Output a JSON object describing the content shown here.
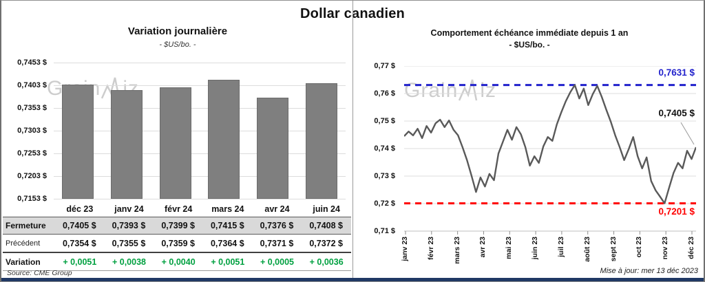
{
  "page": {
    "title": "Dollar canadien",
    "source": "Source: CME Group",
    "updated": "Mise à jour: mer 13 déc 2023",
    "watermark": {
      "part1": "Grain",
      "part2": "iz"
    }
  },
  "colors": {
    "bar": "#7F7F7F",
    "price_line": "#595959",
    "max_line": "#2222CC",
    "min_line": "#FF0000",
    "positive_text": "#00A040",
    "closing_band_bg": "#D9D9D9",
    "gridline": "#DCDCDC",
    "bottom_bar": "#1F3864"
  },
  "table": {
    "columns": [
      "déc 23",
      "janv 24",
      "févr 24",
      "mars 24",
      "avr 24",
      "juin 24"
    ],
    "rows": [
      {
        "label": "Fermeture",
        "style": "closing",
        "values": [
          "0,7405 $",
          "0,7393 $",
          "0,7399 $",
          "0,7415 $",
          "0,7376 $",
          "0,7408 $"
        ]
      },
      {
        "label": "Précédent",
        "style": "previous",
        "values": [
          "0,7354 $",
          "0,7355 $",
          "0,7359 $",
          "0,7364 $",
          "0,7371 $",
          "0,7372 $"
        ]
      },
      {
        "label": "Variation",
        "style": "variation",
        "values": [
          "+ 0,0051",
          "+ 0,0038",
          "+ 0,0040",
          "+ 0,0051",
          "+ 0,0005",
          "+ 0,0036"
        ]
      }
    ]
  },
  "chart_data": [
    {
      "type": "bar",
      "title": "Variation  journalière",
      "subtitle": "- $US/bo. -",
      "categories": [
        "déc 23",
        "janv 24",
        "févr 24",
        "mars 24",
        "avr 24",
        "juin 24"
      ],
      "values": [
        0.7405,
        0.7393,
        0.7399,
        0.7415,
        0.7376,
        0.7408
      ],
      "ylim": [
        0.7153,
        0.7453
      ],
      "yticks": [
        "0,7453 $",
        "0,7403 $",
        "0,7353 $",
        "0,7303 $",
        "0,7253 $",
        "0,7203 $",
        "0,7153 $"
      ],
      "grid": true,
      "legend": "none"
    },
    {
      "type": "line",
      "title": "Comportement échéance immédiate depuis 1 an",
      "subtitle": "- $US/bo. -",
      "x_categories": [
        "janv 23",
        "févr 23",
        "mars 23",
        "avr 23",
        "mai 23",
        "juin 23",
        "juil 23",
        "août 23",
        "sept 23",
        "oct 23",
        "nov 23",
        "déc 23"
      ],
      "values": [
        0.7445,
        0.7462,
        0.7448,
        0.7472,
        0.7438,
        0.7482,
        0.7458,
        0.7492,
        0.7505,
        0.7478,
        0.7502,
        0.7468,
        0.7448,
        0.7405,
        0.7358,
        0.7302,
        0.7242,
        0.7295,
        0.7262,
        0.7308,
        0.7285,
        0.7382,
        0.7425,
        0.7468,
        0.7432,
        0.7478,
        0.7452,
        0.7405,
        0.7338,
        0.7372,
        0.7348,
        0.7408,
        0.7442,
        0.7428,
        0.7488,
        0.7532,
        0.7572,
        0.7605,
        0.7631,
        0.7582,
        0.7618,
        0.7558,
        0.7598,
        0.7628,
        0.7588,
        0.7542,
        0.7498,
        0.7448,
        0.7405,
        0.7358,
        0.7398,
        0.7442,
        0.7372,
        0.7328,
        0.7368,
        0.7282,
        0.7248,
        0.7225,
        0.7201,
        0.7258,
        0.7312,
        0.7348,
        0.7328,
        0.7392,
        0.7362,
        0.7405
      ],
      "ylim": [
        0.71,
        0.77
      ],
      "yticks": [
        "0,77 $",
        "0,76 $",
        "0,75 $",
        "0,74 $",
        "0,73 $",
        "0,72 $",
        "0,71 $"
      ],
      "ytick_values": [
        0.77,
        0.76,
        0.75,
        0.74,
        0.73,
        0.72,
        0.71
      ],
      "grid": true,
      "max_line": {
        "value": 0.7631,
        "label": "0,7631 $"
      },
      "min_line": {
        "value": 0.7201,
        "label": "0,7201 $"
      },
      "last_point": {
        "value": 0.7405,
        "label": "0,7405 $"
      }
    }
  ]
}
